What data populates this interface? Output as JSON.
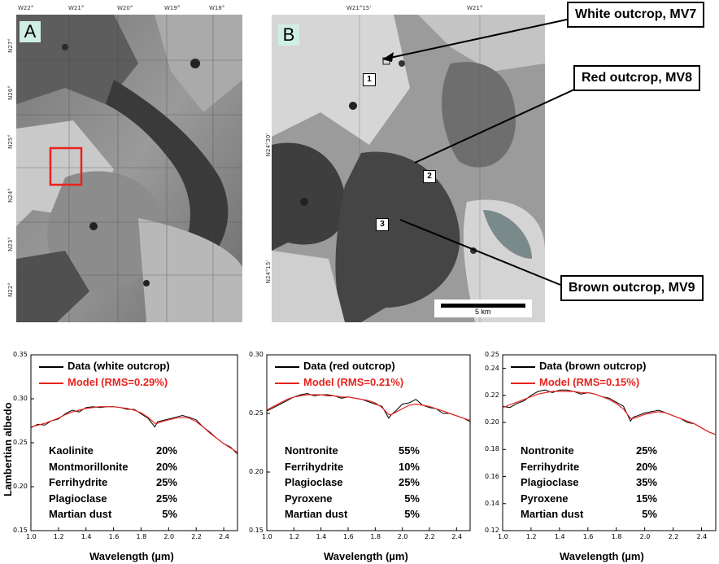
{
  "panel_a": {
    "label": "A",
    "top_ticks": [
      "W22°",
      "W21°",
      "W20°",
      "W19°",
      "W18°"
    ],
    "left_ticks": [
      "N27°",
      "N26°",
      "N25°",
      "N24°",
      "N23°",
      "N22°"
    ]
  },
  "panel_b": {
    "label": "B",
    "top_ticks": [
      "W21°15'",
      "W21°"
    ],
    "left_ticks": [
      "N24°30'",
      "N24°15'"
    ],
    "scale_bar": "5 km",
    "markers": [
      "1",
      "2",
      "3"
    ]
  },
  "callouts": {
    "white": "White outcrop, MV7",
    "red": "Red outcrop, MV8",
    "brown": "Brown outcrop, MV9"
  },
  "colors": {
    "data": "#000000",
    "model": "#e8231e",
    "box": "#e8231e",
    "label_bg": "#cfeee6"
  },
  "ylabel": "Lambertian albedo",
  "xlabel": "Wavelength (µm)",
  "chart_data": [
    {
      "type": "line",
      "xlim": [
        1.0,
        2.5
      ],
      "ylim": [
        0.15,
        0.35
      ],
      "xticks": [
        "1.0",
        "1.2",
        "1.4",
        "1.6",
        "1.8",
        "2.0",
        "2.2",
        "2.4"
      ],
      "yticks": [
        "0.35",
        "0.30",
        "0.25",
        "0.20",
        "0.15"
      ],
      "legend": [
        "Data (white outcrop)",
        "Model (RMS=0.29%)"
      ],
      "minerals": [
        {
          "name": "Kaolinite",
          "pct": "20%"
        },
        {
          "name": "Montmorillonite",
          "pct": "20%"
        },
        {
          "name": "Ferrihydrite",
          "pct": "25%"
        },
        {
          "name": "Plagioclase",
          "pct": "25%"
        },
        {
          "name": "Martian dust",
          "pct": "5%"
        }
      ],
      "x": [
        1.0,
        1.05,
        1.1,
        1.15,
        1.2,
        1.25,
        1.3,
        1.35,
        1.4,
        1.45,
        1.5,
        1.55,
        1.6,
        1.65,
        1.7,
        1.75,
        1.8,
        1.85,
        1.9,
        1.92,
        1.95,
        2.0,
        2.05,
        2.1,
        2.15,
        2.2,
        2.25,
        2.3,
        2.35,
        2.4,
        2.45,
        2.5
      ],
      "series": [
        {
          "values": [
            0.267,
            0.271,
            0.27,
            0.275,
            0.277,
            0.283,
            0.287,
            0.285,
            0.29,
            0.291,
            0.29,
            0.291,
            0.291,
            0.29,
            0.288,
            0.288,
            0.283,
            0.278,
            0.268,
            0.274,
            0.275,
            0.277,
            0.279,
            0.281,
            0.279,
            0.276,
            0.268,
            0.262,
            0.255,
            0.249,
            0.245,
            0.237
          ]
        },
        {
          "values": [
            0.268,
            0.27,
            0.272,
            0.275,
            0.278,
            0.282,
            0.285,
            0.287,
            0.289,
            0.29,
            0.291,
            0.291,
            0.291,
            0.29,
            0.289,
            0.287,
            0.284,
            0.279,
            0.272,
            0.272,
            0.274,
            0.276,
            0.278,
            0.279,
            0.278,
            0.274,
            0.268,
            0.261,
            0.255,
            0.249,
            0.244,
            0.239
          ]
        }
      ]
    },
    {
      "type": "line",
      "xlim": [
        1.0,
        2.5
      ],
      "ylim": [
        0.15,
        0.3
      ],
      "xticks": [
        "1.0",
        "1.2",
        "1.4",
        "1.6",
        "1.8",
        "2.0",
        "2.2",
        "2.4"
      ],
      "yticks": [
        "0.30",
        "0.25",
        "0.20",
        "0.15"
      ],
      "legend": [
        "Data (red outcrop)",
        "Model (RMS=0.21%)"
      ],
      "minerals": [
        {
          "name": "Nontronite",
          "pct": "55%"
        },
        {
          "name": "Ferrihydrite",
          "pct": "10%"
        },
        {
          "name": "Plagioclase",
          "pct": "25%"
        },
        {
          "name": "Pyroxene",
          "pct": "5%"
        },
        {
          "name": "Martian dust",
          "pct": "5%"
        }
      ],
      "x": [
        1.0,
        1.05,
        1.1,
        1.15,
        1.2,
        1.25,
        1.3,
        1.35,
        1.4,
        1.45,
        1.5,
        1.55,
        1.6,
        1.65,
        1.7,
        1.75,
        1.8,
        1.85,
        1.9,
        1.92,
        1.95,
        2.0,
        2.05,
        2.1,
        2.15,
        2.2,
        2.25,
        2.3,
        2.35,
        2.4,
        2.45,
        2.5
      ],
      "series": [
        {
          "values": [
            0.252,
            0.255,
            0.258,
            0.261,
            0.264,
            0.266,
            0.267,
            0.265,
            0.266,
            0.266,
            0.265,
            0.263,
            0.264,
            0.263,
            0.262,
            0.26,
            0.258,
            0.256,
            0.246,
            0.249,
            0.252,
            0.258,
            0.259,
            0.262,
            0.257,
            0.255,
            0.254,
            0.25,
            0.25,
            0.248,
            0.246,
            0.243
          ]
        },
        {
          "values": [
            0.253,
            0.256,
            0.259,
            0.262,
            0.264,
            0.265,
            0.266,
            0.266,
            0.266,
            0.265,
            0.265,
            0.264,
            0.264,
            0.263,
            0.262,
            0.261,
            0.259,
            0.255,
            0.249,
            0.249,
            0.251,
            0.254,
            0.257,
            0.258,
            0.257,
            0.256,
            0.254,
            0.252,
            0.25,
            0.248,
            0.246,
            0.244
          ]
        }
      ]
    },
    {
      "type": "line",
      "xlim": [
        1.0,
        2.5
      ],
      "ylim": [
        0.12,
        0.25
      ],
      "xticks": [
        "1.0",
        "1.2",
        "1.4",
        "1.6",
        "1.8",
        "2.0",
        "2.2",
        "2.4"
      ],
      "yticks": [
        "0.25",
        "0.24",
        "0.22",
        "0.20",
        "0.18",
        "0.16",
        "0.14",
        "0.12"
      ],
      "legend": [
        "Data (brown outcrop)",
        "Model (RMS=0.15%)"
      ],
      "minerals": [
        {
          "name": "Nontronite",
          "pct": "25%"
        },
        {
          "name": "Ferrihydrite",
          "pct": "20%"
        },
        {
          "name": "Plagioclase",
          "pct": "35%"
        },
        {
          "name": "Pyroxene",
          "pct": "15%"
        },
        {
          "name": "Martian dust",
          "pct": "5%"
        }
      ],
      "x": [
        1.0,
        1.05,
        1.1,
        1.15,
        1.2,
        1.25,
        1.3,
        1.35,
        1.4,
        1.45,
        1.5,
        1.55,
        1.6,
        1.65,
        1.7,
        1.75,
        1.8,
        1.85,
        1.9,
        1.92,
        1.95,
        2.0,
        2.05,
        2.1,
        2.15,
        2.2,
        2.25,
        2.3,
        2.35,
        2.4,
        2.45,
        2.5
      ],
      "series": [
        {
          "values": [
            0.212,
            0.211,
            0.214,
            0.216,
            0.22,
            0.223,
            0.224,
            0.222,
            0.224,
            0.224,
            0.223,
            0.221,
            0.222,
            0.221,
            0.219,
            0.218,
            0.215,
            0.212,
            0.201,
            0.204,
            0.205,
            0.207,
            0.208,
            0.209,
            0.207,
            0.205,
            0.203,
            0.2,
            0.199,
            0.196,
            0.193,
            0.191
          ]
        },
        {
          "values": [
            0.211,
            0.213,
            0.215,
            0.217,
            0.219,
            0.221,
            0.222,
            0.223,
            0.223,
            0.223,
            0.223,
            0.222,
            0.222,
            0.221,
            0.219,
            0.217,
            0.214,
            0.21,
            0.203,
            0.203,
            0.204,
            0.206,
            0.207,
            0.208,
            0.207,
            0.205,
            0.203,
            0.201,
            0.199,
            0.196,
            0.193,
            0.191
          ]
        }
      ]
    }
  ]
}
